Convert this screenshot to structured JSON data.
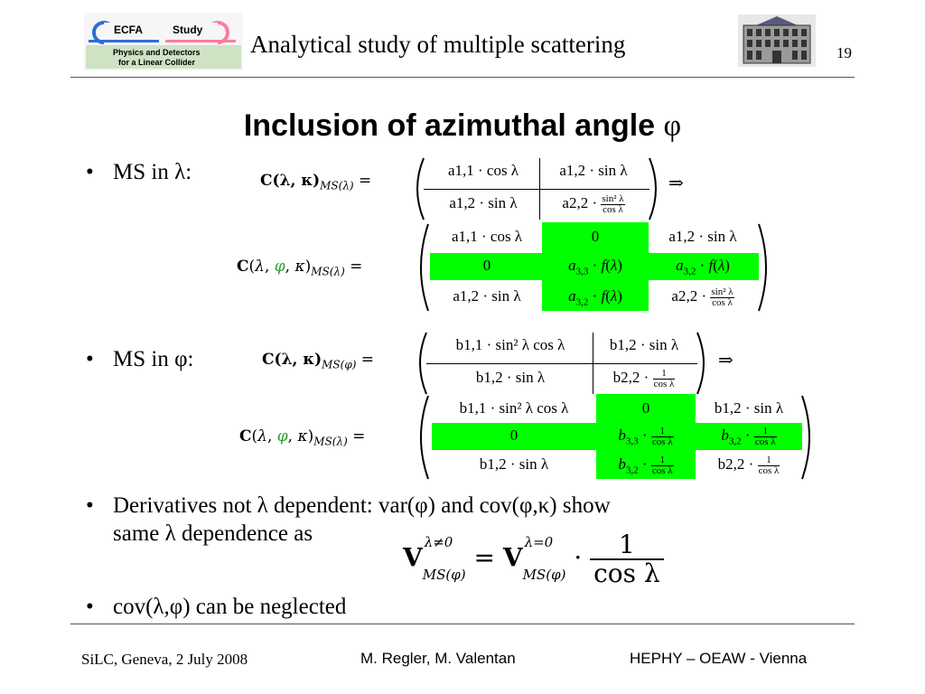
{
  "header": {
    "logo_top": "ECFA",
    "logo_study": "Study",
    "logo_line1": "Physics and Detectors",
    "logo_line2": "for a Linear Collider",
    "title": "Analytical study of multiple scattering",
    "page_number": "19"
  },
  "slide": {
    "title": "Inclusion of azimuthal angle",
    "title_symbol": "φ",
    "bullets": [
      "MS in λ:",
      "MS in φ:",
      "Derivatives not λ dependent: var(φ) and cov(φ,κ) show",
      "same λ dependence as",
      "cov(λ,φ) can be neglected"
    ]
  },
  "equations": {
    "implies": "⇒",
    "lhs_lambda_2x2": "C(λ, κ)",
    "lhs_lambda_3x3": "C(λ, φ, κ)",
    "sub_lambda": "MS(λ)",
    "sub_phi": "MS(φ)",
    "m1": [
      "a1,1 · cos λ",
      "a1,2 · sin λ",
      "a1,2 · sin λ",
      "a2,2 ·"
    ],
    "m3": [
      "b1,1 · sin² λ cos λ",
      "b1,2 · sin λ",
      "b1,2 · sin λ",
      "b2,2 ·"
    ],
    "frac_sin2": {
      "num": "sin² λ",
      "den": "cos λ"
    },
    "frac_one": {
      "num": "1",
      "den": "cos λ"
    },
    "final_eq": {
      "lhs": "V",
      "lhs_sup": "λ≠0",
      "rhs": "V",
      "rhs_sup": "λ=0",
      "sub": "MS(φ)",
      "num": "1",
      "den": "cos λ"
    }
  },
  "footer": {
    "left": "SiLC, Geneva, 2 July 2008",
    "middle": "M. Regler, M. Valentan",
    "right": "HEPHY – OEAW - Vienna"
  },
  "colors": {
    "highlight": "#00ff00",
    "phi_green": "#2ca02c"
  }
}
